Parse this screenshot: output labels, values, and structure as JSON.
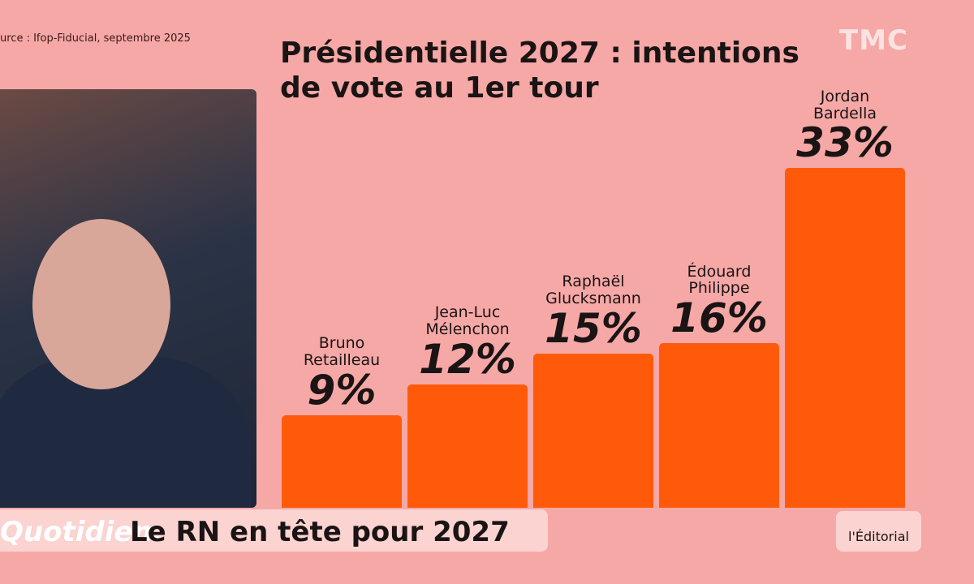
{
  "source": "urce : Ifop-Fiducial, septembre 2025",
  "channel": "TMC",
  "show": "Quotidien.",
  "headline": "Le RN en tête pour 2027",
  "segment": "l'Éditorial",
  "chart_data": {
    "type": "bar",
    "title": "Présidentielle 2027 : intentions de vote au 1er tour",
    "categories": [
      "Bruno\nRetailleau",
      "Jean-Luc\nMélenchon",
      "Raphaël\nGlucksmann",
      "Édouard\nPhilippe",
      "Jordan\nBardella"
    ],
    "values": [
      9,
      12,
      15,
      16,
      33
    ],
    "value_labels": [
      "9%",
      "12%",
      "15%",
      "16%",
      "33%"
    ],
    "color": "#ff5a0a"
  }
}
